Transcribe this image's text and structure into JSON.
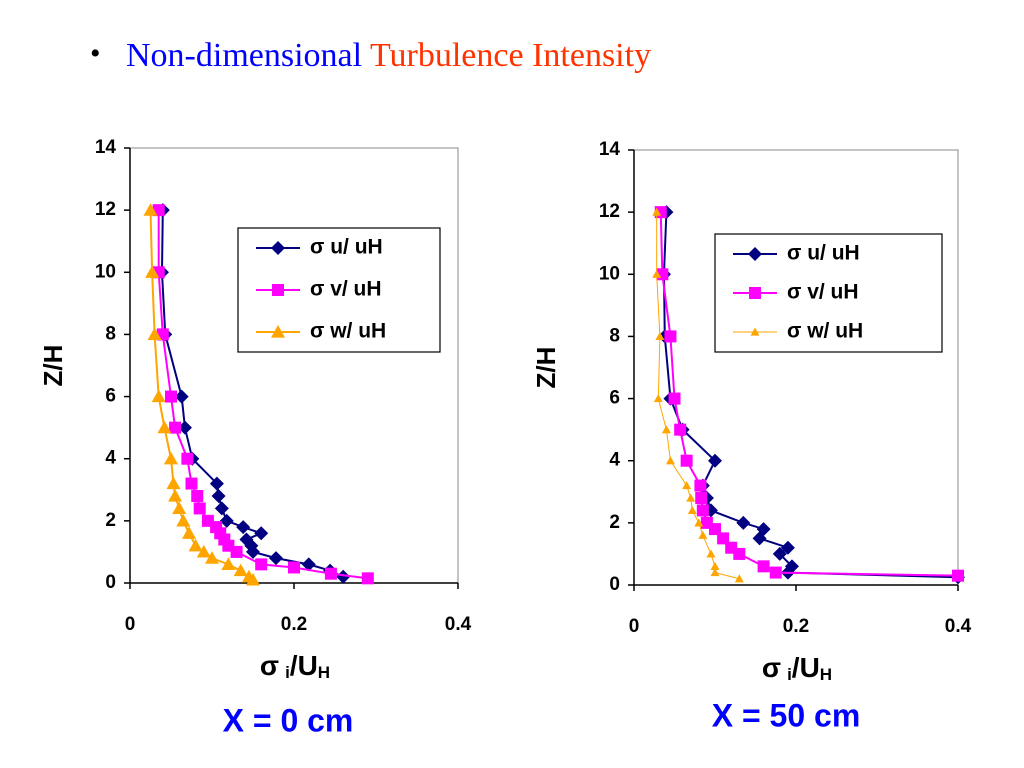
{
  "title": {
    "bullet": "•",
    "parts": [
      {
        "text": "Non-dimensional",
        "color": "#0000ff"
      },
      {
        "text": "Turbulence Intensity",
        "color": "#ff3300"
      }
    ]
  },
  "chart_data": [
    {
      "type": "line",
      "xlabel": [
        "σ",
        "i",
        "/U",
        "H"
      ],
      "ylabel": "Z/H",
      "caption": "X = 0 cm",
      "xlim": [
        0,
        0.4
      ],
      "xticks": [
        0,
        0.2,
        0.4
      ],
      "ylim": [
        0,
        14
      ],
      "yticks": [
        0,
        2,
        4,
        6,
        8,
        10,
        12,
        14
      ],
      "series": [
        {
          "name": "σ u/ uH",
          "color": "#000080",
          "marker": "diamond",
          "line_width": 2,
          "x": [
            0.04,
            0.039,
            0.043,
            0.063,
            0.067,
            0.076,
            0.106,
            0.108,
            0.112,
            0.118,
            0.138,
            0.16,
            0.142,
            0.148,
            0.15,
            0.178,
            0.218,
            0.244,
            0.26
          ],
          "y": [
            12,
            10,
            8,
            6,
            5,
            4,
            3.2,
            2.8,
            2.4,
            2,
            1.8,
            1.6,
            1.4,
            1.2,
            1,
            0.8,
            0.6,
            0.4,
            0.2
          ]
        },
        {
          "name": "σ v/ uH",
          "color": "#ff00ff",
          "marker": "square",
          "line_width": 2,
          "x": [
            0.035,
            0.035,
            0.04,
            0.05,
            0.055,
            0.07,
            0.075,
            0.082,
            0.085,
            0.095,
            0.105,
            0.11,
            0.115,
            0.12,
            0.13,
            0.16,
            0.2,
            0.245,
            0.29
          ],
          "y": [
            12,
            10,
            8,
            6,
            5,
            4,
            3.2,
            2.8,
            2.4,
            2,
            1.8,
            1.6,
            1.4,
            1.2,
            1,
            0.6,
            0.5,
            0.3,
            0.15
          ]
        },
        {
          "name": "σ w/ uH",
          "color": "#ffa500",
          "marker": "triangle",
          "line_width": 2,
          "x": [
            0.025,
            0.027,
            0.03,
            0.035,
            0.042,
            0.05,
            0.053,
            0.055,
            0.06,
            0.065,
            0.072,
            0.08,
            0.09,
            0.1,
            0.12,
            0.135,
            0.145,
            0.15
          ],
          "y": [
            12,
            10,
            8,
            6,
            5,
            4,
            3.2,
            2.8,
            2.4,
            2,
            1.6,
            1.2,
            1,
            0.8,
            0.6,
            0.4,
            0.2,
            0.1
          ]
        }
      ]
    },
    {
      "type": "line",
      "xlabel": [
        "σ",
        "i",
        "/U",
        "H"
      ],
      "ylabel": "Z/H",
      "caption": "X = 50 cm",
      "xlim": [
        0,
        0.4
      ],
      "xticks": [
        0,
        0.2,
        0.4
      ],
      "ylim": [
        0,
        14
      ],
      "yticks": [
        0,
        2,
        4,
        6,
        8,
        10,
        12,
        14
      ],
      "series": [
        {
          "name": "σ u/ uH",
          "color": "#000080",
          "marker": "diamond",
          "line_width": 2,
          "x": [
            0.04,
            0.037,
            0.038,
            0.045,
            0.06,
            0.1,
            0.085,
            0.09,
            0.095,
            0.135,
            0.16,
            0.155,
            0.19,
            0.18,
            0.195,
            0.19,
            0.4
          ],
          "y": [
            12,
            10,
            8,
            6,
            5,
            4,
            3.2,
            2.8,
            2.4,
            2,
            1.8,
            1.5,
            1.2,
            1,
            0.6,
            0.4,
            0.25
          ]
        },
        {
          "name": "σ v/ uH",
          "color": "#ff00ff",
          "marker": "square",
          "line_width": 2,
          "x": [
            0.033,
            0.035,
            0.045,
            0.05,
            0.057,
            0.065,
            0.082,
            0.083,
            0.085,
            0.09,
            0.1,
            0.11,
            0.12,
            0.13,
            0.16,
            0.175,
            0.4
          ],
          "y": [
            12,
            10,
            8,
            6,
            5,
            4,
            3.2,
            2.8,
            2.4,
            2,
            1.8,
            1.5,
            1.2,
            1,
            0.6,
            0.4,
            0.3
          ]
        },
        {
          "name": "σ w/ uH",
          "color": "#ffa500",
          "marker": "triangle_small",
          "line_width": 1,
          "x": [
            0.028,
            0.028,
            0.032,
            0.03,
            0.04,
            0.045,
            0.065,
            0.07,
            0.072,
            0.08,
            0.085,
            0.095,
            0.1,
            0.1,
            0.13
          ],
          "y": [
            12,
            10,
            8,
            6,
            5,
            4,
            3.2,
            2.8,
            2.4,
            2,
            1.6,
            1,
            0.6,
            0.4,
            0.2
          ]
        }
      ]
    }
  ]
}
